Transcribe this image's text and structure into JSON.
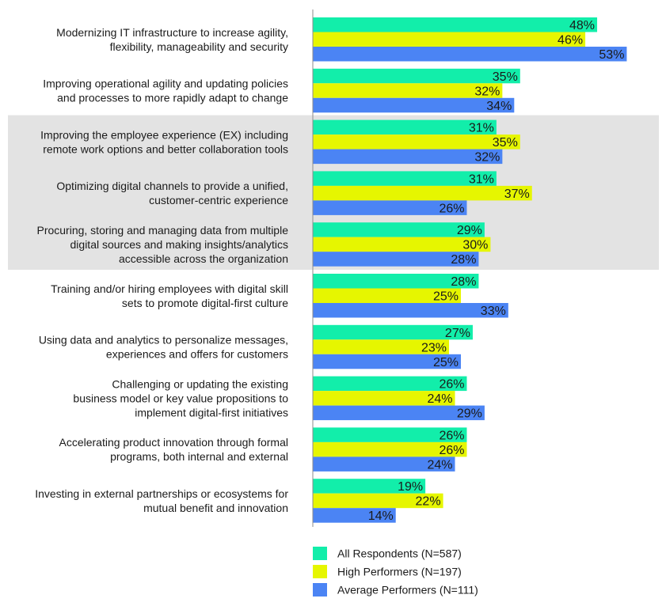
{
  "chart_data": {
    "type": "bar",
    "orientation": "horizontal",
    "categories": [
      [
        "Modernizing IT infrastructure to increase agility,",
        "flexibility, manageability and security"
      ],
      [
        "Improving operational agility and updating policies",
        "and processes to more rapidly adapt to change"
      ],
      [
        "Improving the employee experience (EX) including",
        "remote work options and better collaboration tools"
      ],
      [
        "Optimizing digital channels to provide a unified,",
        "customer-centric experience"
      ],
      [
        "Procuring, storing and managing data from multiple",
        "digital sources and making insights/analytics",
        "accessible across the organization"
      ],
      [
        "Training and/or hiring employees with digital skill",
        "sets to promote digital-first culture"
      ],
      [
        "Using data and analytics to personalize messages,",
        "experiences and offers for customers"
      ],
      [
        "Challenging or updating the existing",
        "business model or key value propositions to",
        "implement digital-first initiatives"
      ],
      [
        "Accelerating product innovation through formal",
        "programs, both internal and external"
      ],
      [
        "Investing in external partnerships or ecosystems for",
        "mutual benefit and innovation"
      ]
    ],
    "series": [
      {
        "name": "All Respondents (N=587)",
        "color": "#12eeaa",
        "values": [
          48,
          35,
          31,
          31,
          29,
          28,
          27,
          26,
          26,
          19
        ]
      },
      {
        "name": "High Performers (N=197)",
        "color": "#e6f600",
        "values": [
          46,
          32,
          35,
          37,
          30,
          25,
          23,
          24,
          26,
          22
        ]
      },
      {
        "name": "Average Performers (N=111)",
        "color": "#4b84f4",
        "values": [
          53,
          34,
          32,
          26,
          28,
          33,
          25,
          29,
          24,
          14
        ]
      }
    ],
    "value_suffix": "%",
    "highlighted_categories": [
      2,
      3,
      4
    ],
    "highlight_color": "#e3e3e3",
    "legend_position": "bottom"
  }
}
